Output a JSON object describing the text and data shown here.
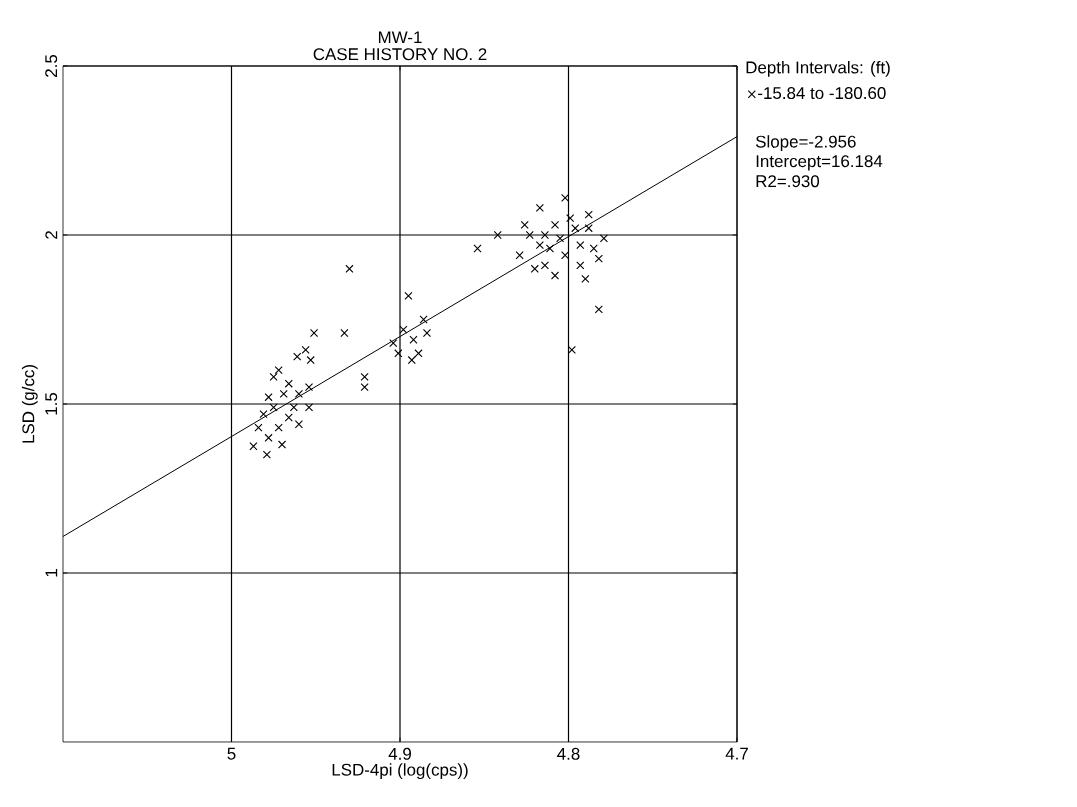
{
  "chart_data": {
    "type": "scatter",
    "title": "MW-1",
    "subtitle": "CASE HISTORY NO. 2",
    "xlabel": "LSD-4pi (log(cps))",
    "ylabel": "LSD (g/cc)",
    "legend_title": "Depth Intervals: (ft)",
    "xlim": [
      5.1,
      4.7
    ],
    "ylim": [
      0.5,
      2.5
    ],
    "xticks": [
      5,
      4.9,
      4.8,
      4.7
    ],
    "yticks": [
      1,
      1.5,
      2,
      2.5
    ],
    "grid": true,
    "legend": "right",
    "marker": "cross",
    "annotations": [
      "Slope=-2.956",
      "Intercept=16.184",
      "R2=.930"
    ],
    "series": [
      {
        "name": "-15.84 to -180.60",
        "color": "#000000",
        "x": [
          4.93,
          4.895,
          4.798,
          4.782,
          4.854,
          4.842,
          4.933,
          4.921,
          4.921,
          4.975,
          4.987,
          4.978,
          4.972,
          4.961,
          4.951,
          4.956,
          4.953,
          4.954,
          4.954,
          4.966,
          4.984,
          4.978,
          4.969,
          4.963,
          4.972,
          4.981,
          4.96,
          4.966,
          4.975,
          4.96,
          4.979,
          4.97,
          4.901,
          4.892,
          4.898,
          4.886,
          4.889,
          4.904,
          4.893,
          4.884,
          4.817,
          4.802,
          4.788,
          4.779,
          4.829,
          4.82,
          4.808,
          4.793,
          4.785,
          4.814,
          4.805,
          4.796,
          4.811,
          4.802,
          4.793,
          4.817,
          4.823,
          4.799,
          4.808,
          4.788,
          4.826,
          4.79,
          4.814,
          4.782
        ],
        "values": [
          1.9,
          1.82,
          1.66,
          1.78,
          1.96,
          2.0,
          1.71,
          1.58,
          1.55,
          1.49,
          1.375,
          1.4,
          1.6,
          1.64,
          1.71,
          1.66,
          1.63,
          1.55,
          1.49,
          1.46,
          1.43,
          1.52,
          1.53,
          1.49,
          1.43,
          1.47,
          1.44,
          1.56,
          1.58,
          1.53,
          1.35,
          1.38,
          1.65,
          1.69,
          1.72,
          1.75,
          1.65,
          1.68,
          1.63,
          1.71,
          2.08,
          2.11,
          2.06,
          1.99,
          1.94,
          1.9,
          1.88,
          1.91,
          1.96,
          2.0,
          1.99,
          2.02,
          1.96,
          1.94,
          1.97,
          1.97,
          2.0,
          2.05,
          2.03,
          2.02,
          2.03,
          1.87,
          1.91,
          1.93
        ]
      },
      {
        "type": "line",
        "marker": "none",
        "color": "#000000",
        "x": [
          5.1,
          4.7
        ],
        "values": [
          1.108,
          2.291
        ]
      }
    ]
  }
}
